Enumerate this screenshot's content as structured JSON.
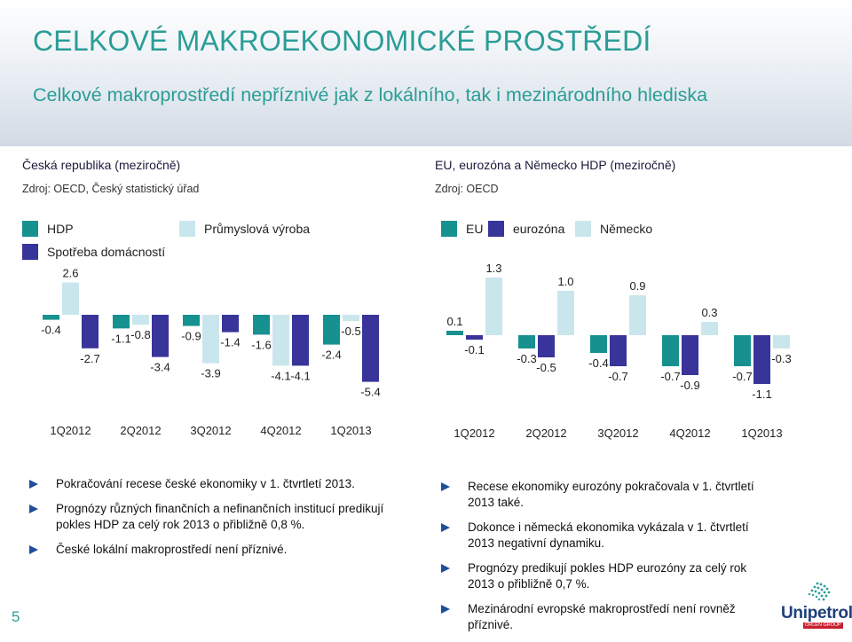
{
  "title": "CELKOVÉ MAKROEKONOMICKÉ PROSTŘEDÍ",
  "subtitle": "Celkové makroprostředí nepříznivé jak z lokálního, tak i mezinárodního hlediska",
  "left": {
    "heading": "Česká republika (meziročně)",
    "source": "Zdroj: OECD, Český statistický úřad",
    "legend": [
      "HDP",
      "Průmyslová výroba",
      "Spotřeba domácností"
    ]
  },
  "right": {
    "heading": "EU, eurozóna a Německo HDP (meziročně)",
    "source": "Zdroj: OECD",
    "legend": [
      "EU",
      "eurozóna",
      "Německo"
    ]
  },
  "colors": {
    "teal": "#17918f",
    "purple": "#38349a",
    "lightblue": "#c9e6ec",
    "accent": "#2a9d96"
  },
  "chart_data": [
    {
      "type": "bar",
      "categories": [
        "1Q2012",
        "2Q2012",
        "3Q2012",
        "4Q2012",
        "1Q2013"
      ],
      "series": [
        {
          "name": "HDP",
          "values": [
            -0.4,
            -1.1,
            -0.9,
            -1.6,
            -2.4
          ]
        },
        {
          "name": "Průmyslová výroba",
          "values": [
            2.6,
            -0.8,
            -3.9,
            -4.1,
            -0.5
          ]
        },
        {
          "name": "Spotřeba domácností",
          "values": [
            -2.7,
            -3.4,
            -1.4,
            -4.1,
            -5.4
          ]
        }
      ],
      "labels": [
        "-0.4",
        "2.6",
        "-2.7",
        "-1.1",
        "-0.8",
        "-3.4",
        "-0.9",
        "-3.9",
        "-1.4",
        "-1.6",
        "-4.1",
        "-4.1",
        "-2.4",
        "-0.5",
        "-5.4"
      ]
    },
    {
      "type": "bar",
      "categories": [
        "1Q2012",
        "2Q2012",
        "3Q2012",
        "4Q2012",
        "1Q2013"
      ],
      "series": [
        {
          "name": "EU",
          "values": [
            0.1,
            -0.3,
            -0.4,
            -0.7,
            -0.7
          ]
        },
        {
          "name": "eurozóna",
          "values": [
            -0.1,
            -0.5,
            -0.7,
            -0.9,
            -1.1
          ]
        },
        {
          "name": "Německo",
          "values": [
            1.3,
            1.0,
            0.9,
            0.3,
            -0.3
          ]
        }
      ],
      "labels": [
        "0.1",
        "-0.1",
        "1.3",
        "-0.3",
        "-0.5",
        "1.0",
        "-0.4",
        "-0.7",
        "0.9",
        "-0.7",
        "-0.9",
        "0.3",
        "-0.7",
        "-1.1",
        "-0.3"
      ]
    }
  ],
  "bullets_left": [
    "Pokračování recese české ekonomiky v 1. čtvrtletí 2013.",
    "Prognózy různých finančních a nefinančních institucí predikují pokles HDP za celý rok 2013 o přibližně 0,8 %.",
    "České lokální makroprostředí není příznivé."
  ],
  "bullets_right": [
    "Recese ekonomiky eurozóny pokračovala v 1. čtvrtletí 2013 také.",
    "Dokonce i německá ekonomika vykázala v 1. čtvrtletí 2013 negativní dynamiku.",
    "Prognózy predikují pokles HDP eurozóny za celý rok 2013 o přibližně 0,7 %.",
    "Mezinárodní evropské makroprostředí není rovněž příznivé."
  ],
  "page_number": "5",
  "logo": {
    "name": "Unipetrol",
    "sub": "ORLEN GROUP"
  }
}
